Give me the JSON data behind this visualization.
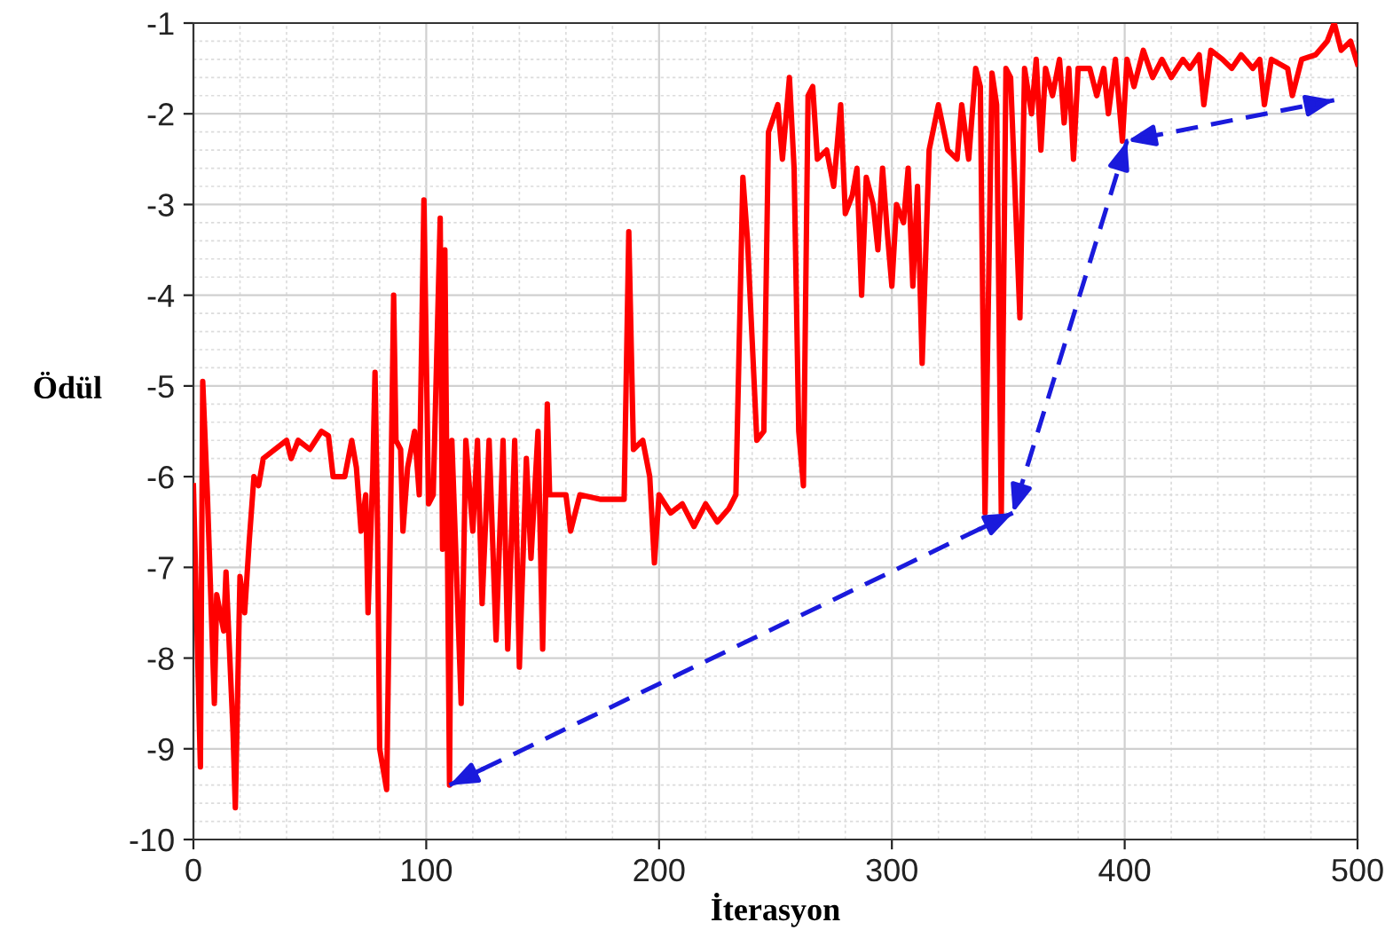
{
  "chart_data": {
    "type": "line",
    "xlabel": "İterasyon",
    "ylabel": "Ödül",
    "xlim": [
      0,
      500
    ],
    "ylim": [
      -10,
      -1
    ],
    "xticks": [
      0,
      100,
      200,
      300,
      400,
      500
    ],
    "yticks": [
      -10,
      -9,
      -8,
      -7,
      -6,
      -5,
      -4,
      -3,
      -2,
      -1
    ],
    "grid": true,
    "series": [
      {
        "color": "#ff0000",
        "line_style": "solid",
        "x": [
          0,
          3,
          4,
          6,
          9,
          10,
          13,
          14,
          17,
          18,
          20,
          22,
          24,
          26,
          28,
          30,
          35,
          40,
          42,
          45,
          50,
          55,
          58,
          60,
          65,
          68,
          70,
          72,
          74,
          75,
          77,
          78,
          79,
          80,
          83,
          86,
          87,
          89,
          90,
          92,
          95,
          97,
          99,
          101,
          103,
          106,
          107,
          108,
          110,
          111,
          115,
          117,
          120,
          122,
          124,
          127,
          130,
          133,
          135,
          138,
          140,
          143,
          145,
          148,
          150,
          152,
          153,
          160,
          162,
          166,
          175,
          185,
          187,
          189,
          193,
          196,
          198,
          200,
          205,
          210,
          215,
          220,
          225,
          230,
          233,
          236,
          238,
          242,
          245,
          247,
          251,
          253,
          256,
          258,
          260,
          262,
          264,
          266,
          268,
          272,
          275,
          278,
          280,
          283,
          285,
          287,
          289,
          292,
          294,
          296,
          298,
          300,
          302,
          305,
          307,
          309,
          311,
          313,
          316,
          320,
          324,
          328,
          330,
          333,
          336,
          338,
          340,
          343,
          345,
          347,
          349,
          351,
          355,
          357,
          360,
          362,
          364,
          366,
          369,
          372,
          374,
          376,
          378,
          380,
          385,
          388,
          391,
          393,
          396,
          399,
          401,
          404,
          408,
          412,
          416,
          420,
          425,
          428,
          432,
          434,
          437,
          442,
          446,
          450,
          455,
          458,
          460,
          463,
          470,
          472,
          476,
          482,
          487,
          490,
          493,
          497,
          500
        ],
        "values": [
          -6.1,
          -9.2,
          -4.95,
          -6.2,
          -8.5,
          -7.3,
          -7.7,
          -7.05,
          -8.8,
          -9.65,
          -7.1,
          -7.5,
          -6.7,
          -6.0,
          -6.1,
          -5.8,
          -5.7,
          -5.6,
          -5.8,
          -5.6,
          -5.7,
          -5.5,
          -5.55,
          -6.0,
          -6.0,
          -5.6,
          -5.9,
          -6.6,
          -6.2,
          -7.5,
          -6.0,
          -4.85,
          -6.4,
          -9.0,
          -9.45,
          -4.0,
          -5.6,
          -5.7,
          -6.6,
          -5.9,
          -5.5,
          -6.2,
          -2.95,
          -6.3,
          -6.2,
          -3.15,
          -6.8,
          -3.5,
          -9.4,
          -5.6,
          -8.5,
          -5.6,
          -6.6,
          -5.6,
          -7.4,
          -5.6,
          -7.8,
          -5.6,
          -7.9,
          -5.6,
          -8.1,
          -5.8,
          -6.9,
          -5.5,
          -7.9,
          -5.2,
          -6.2,
          -6.2,
          -6.6,
          -6.2,
          -6.25,
          -6.25,
          -3.3,
          -5.7,
          -5.6,
          -6.0,
          -6.95,
          -6.2,
          -6.4,
          -6.3,
          -6.55,
          -6.3,
          -6.5,
          -6.35,
          -6.2,
          -2.7,
          -3.4,
          -5.6,
          -5.5,
          -2.2,
          -1.9,
          -2.5,
          -1.6,
          -2.6,
          -5.5,
          -6.1,
          -1.8,
          -1.7,
          -2.5,
          -2.4,
          -2.8,
          -1.9,
          -3.1,
          -2.9,
          -2.6,
          -4.0,
          -2.7,
          -3.0,
          -3.5,
          -2.6,
          -3.3,
          -3.9,
          -3.0,
          -3.2,
          -2.6,
          -3.9,
          -2.8,
          -4.75,
          -2.4,
          -1.9,
          -2.4,
          -2.5,
          -1.9,
          -2.5,
          -1.5,
          -1.7,
          -6.4,
          -1.55,
          -1.9,
          -6.4,
          -1.5,
          -1.6,
          -4.25,
          -1.5,
          -2.0,
          -1.4,
          -2.4,
          -1.5,
          -1.8,
          -1.4,
          -2.1,
          -1.5,
          -2.5,
          -1.5,
          -1.5,
          -1.8,
          -1.5,
          -2.0,
          -1.4,
          -2.3,
          -1.4,
          -1.7,
          -1.3,
          -1.6,
          -1.4,
          -1.6,
          -1.4,
          -1.5,
          -1.35,
          -1.9,
          -1.3,
          -1.4,
          -1.5,
          -1.35,
          -1.5,
          -1.4,
          -1.9,
          -1.4,
          -1.5,
          -1.8,
          -1.4,
          -1.35,
          -1.2,
          -1.0,
          -1.3,
          -1.2,
          -1.45
        ]
      },
      {
        "color": "#1a1adc",
        "line_style": "dashed",
        "x": [
          110,
          352,
          401,
          490
        ],
        "values": [
          -9.4,
          -6.4,
          -2.3,
          -1.85
        ]
      }
    ]
  }
}
